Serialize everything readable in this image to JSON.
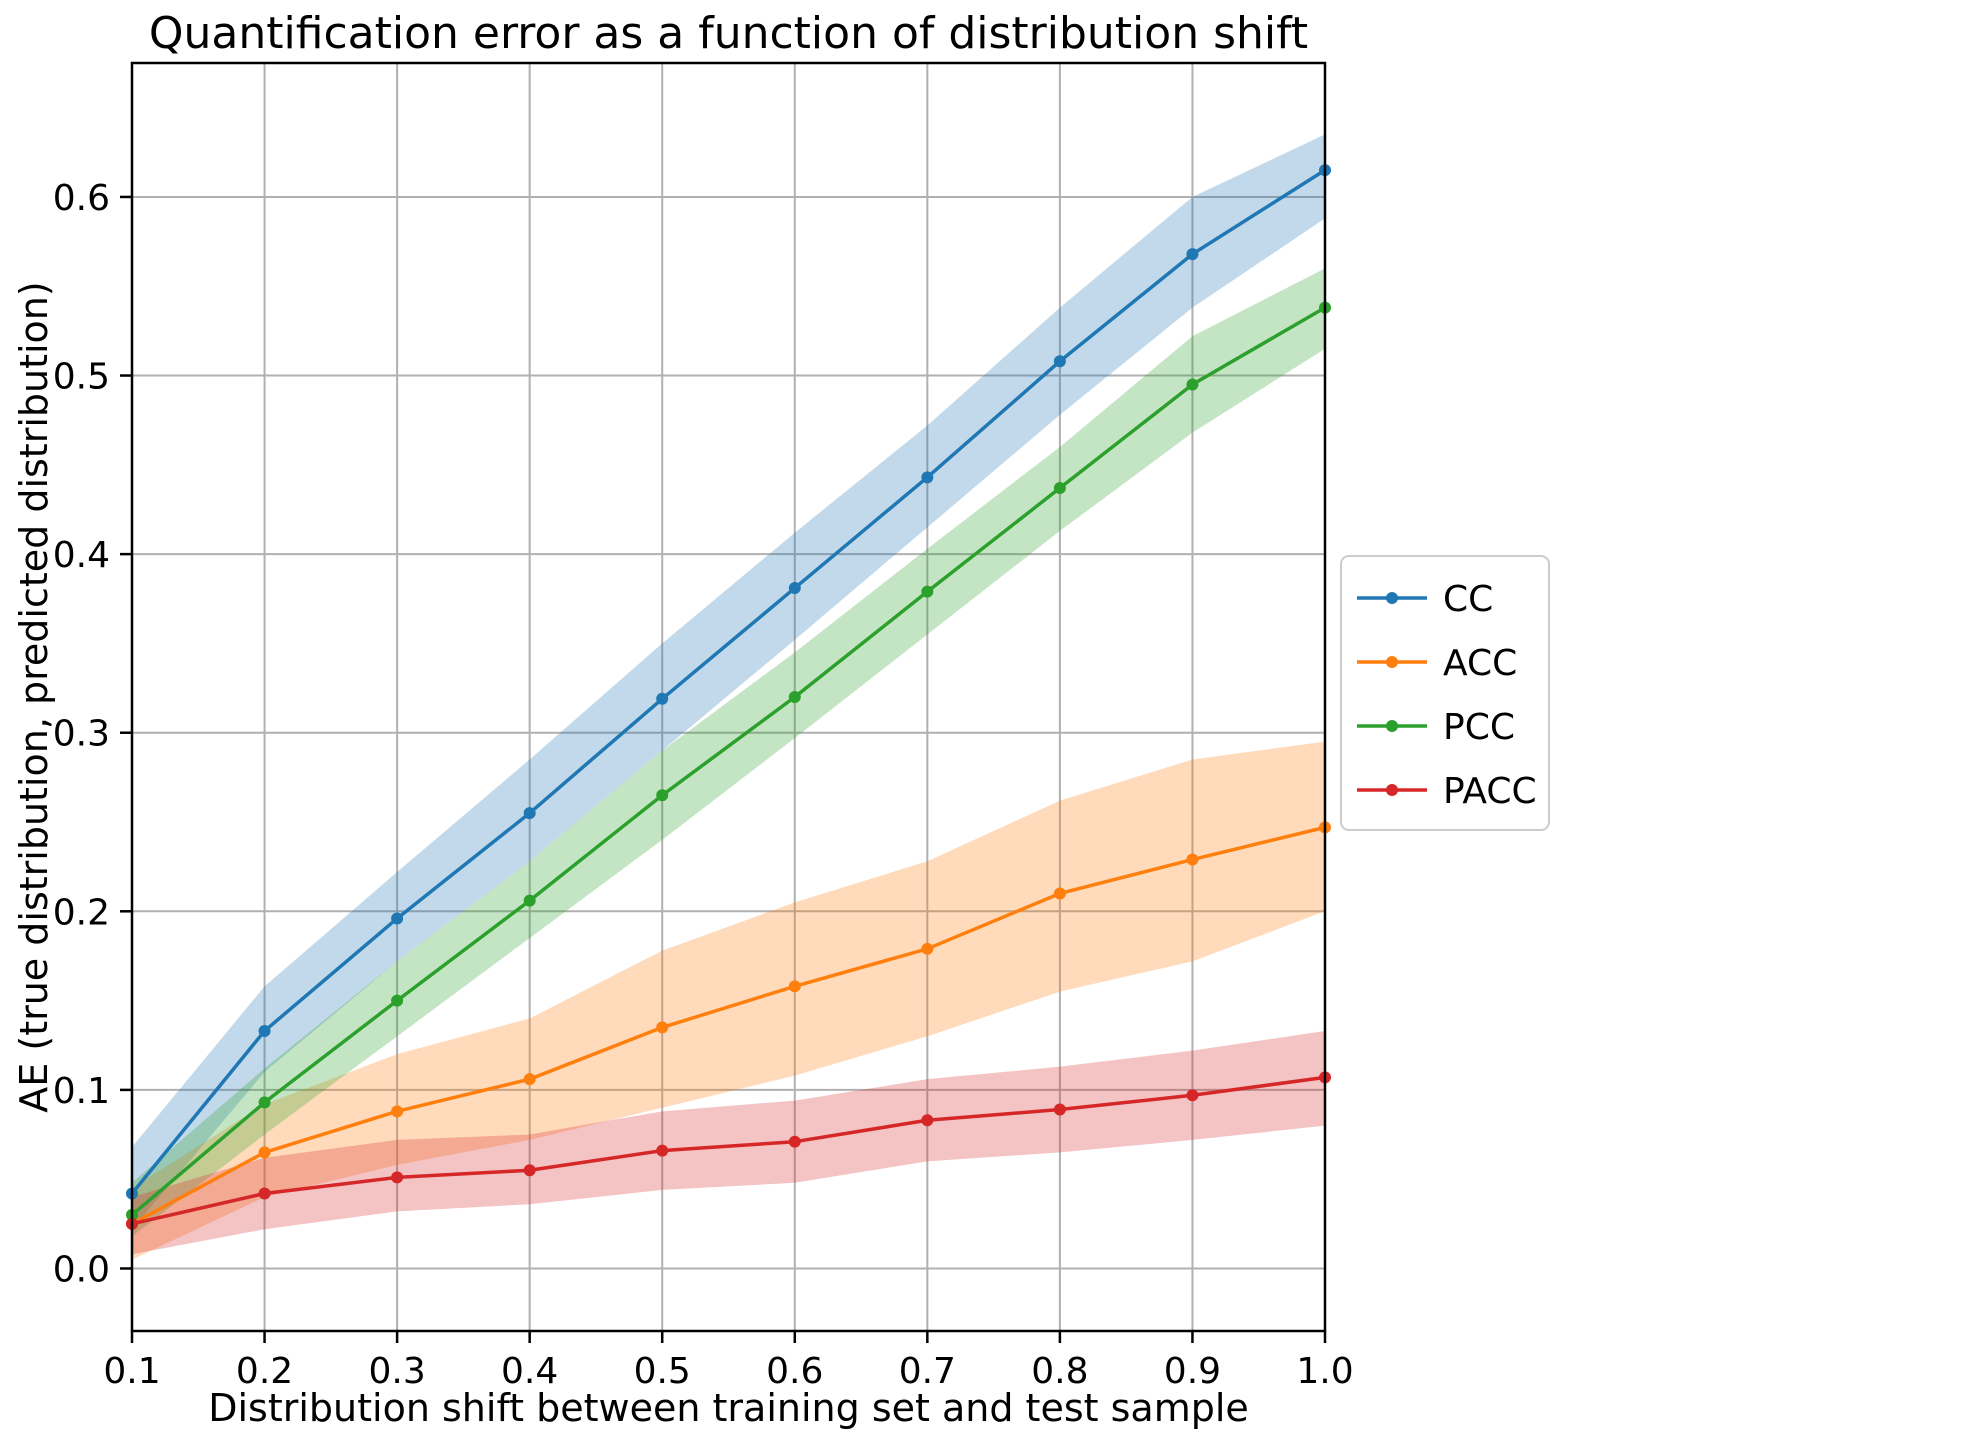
{
  "chart_data": {
    "type": "line",
    "title": "Quantification error as a function of distribution shift",
    "xlabel": "Distribution shift between training set and test sample",
    "ylabel": "AE (true distribution, predicted distribution)",
    "grid": true,
    "legend_position": "right-outside",
    "xlim": [
      0.1,
      1.0
    ],
    "ylim": [
      -0.035,
      0.675
    ],
    "x": [
      0.1,
      0.2,
      0.3,
      0.4,
      0.5,
      0.6,
      0.7,
      0.8,
      0.9,
      1.0
    ],
    "x_tick_labels": [
      "0.1",
      "0.2",
      "0.3",
      "0.4",
      "0.5",
      "0.6",
      "0.7",
      "0.8",
      "0.9",
      "1.0"
    ],
    "x_tick_values": [
      0.1,
      0.2,
      0.3,
      0.4,
      0.5,
      0.6,
      0.7,
      0.8,
      0.9,
      1.0
    ],
    "y_tick_labels": [
      "0.0",
      "0.1",
      "0.2",
      "0.3",
      "0.4",
      "0.5",
      "0.6"
    ],
    "y_tick_values": [
      0.0,
      0.1,
      0.2,
      0.3,
      0.4,
      0.5,
      0.6
    ],
    "band_opacity": 0.28,
    "grid_color": "#b0b0b0",
    "axis_color": "#000000",
    "series": [
      {
        "name": "CC",
        "color": "#1f77b4",
        "values": [
          0.042,
          0.133,
          0.196,
          0.255,
          0.319,
          0.381,
          0.443,
          0.508,
          0.568,
          0.615
        ],
        "lower": [
          0.022,
          0.11,
          0.172,
          0.228,
          0.29,
          0.352,
          0.415,
          0.478,
          0.538,
          0.588
        ],
        "upper": [
          0.068,
          0.158,
          0.222,
          0.285,
          0.35,
          0.412,
          0.472,
          0.538,
          0.6,
          0.635
        ]
      },
      {
        "name": "ACC",
        "color": "#ff7f0e",
        "values": [
          0.025,
          0.065,
          0.088,
          0.106,
          0.135,
          0.158,
          0.179,
          0.21,
          0.229,
          0.247
        ],
        "lower": [
          0.005,
          0.04,
          0.058,
          0.072,
          0.09,
          0.108,
          0.13,
          0.155,
          0.172,
          0.2
        ],
        "upper": [
          0.045,
          0.092,
          0.12,
          0.14,
          0.178,
          0.205,
          0.228,
          0.262,
          0.285,
          0.295
        ]
      },
      {
        "name": "PCC",
        "color": "#2ca02c",
        "values": [
          0.03,
          0.093,
          0.15,
          0.206,
          0.265,
          0.32,
          0.379,
          0.437,
          0.495,
          0.538
        ],
        "lower": [
          0.018,
          0.075,
          0.13,
          0.185,
          0.24,
          0.297,
          0.355,
          0.413,
          0.468,
          0.515
        ],
        "upper": [
          0.048,
          0.112,
          0.172,
          0.228,
          0.29,
          0.345,
          0.403,
          0.46,
          0.522,
          0.56
        ]
      },
      {
        "name": "PACC",
        "color": "#d62728",
        "values": [
          0.025,
          0.042,
          0.051,
          0.055,
          0.066,
          0.071,
          0.083,
          0.089,
          0.097,
          0.107
        ],
        "lower": [
          0.008,
          0.022,
          0.032,
          0.036,
          0.044,
          0.048,
          0.06,
          0.065,
          0.072,
          0.08
        ],
        "upper": [
          0.04,
          0.062,
          0.072,
          0.075,
          0.088,
          0.094,
          0.106,
          0.113,
          0.122,
          0.133
        ]
      }
    ],
    "legend_labels": [
      "CC",
      "ACC",
      "PCC",
      "PACC"
    ]
  }
}
